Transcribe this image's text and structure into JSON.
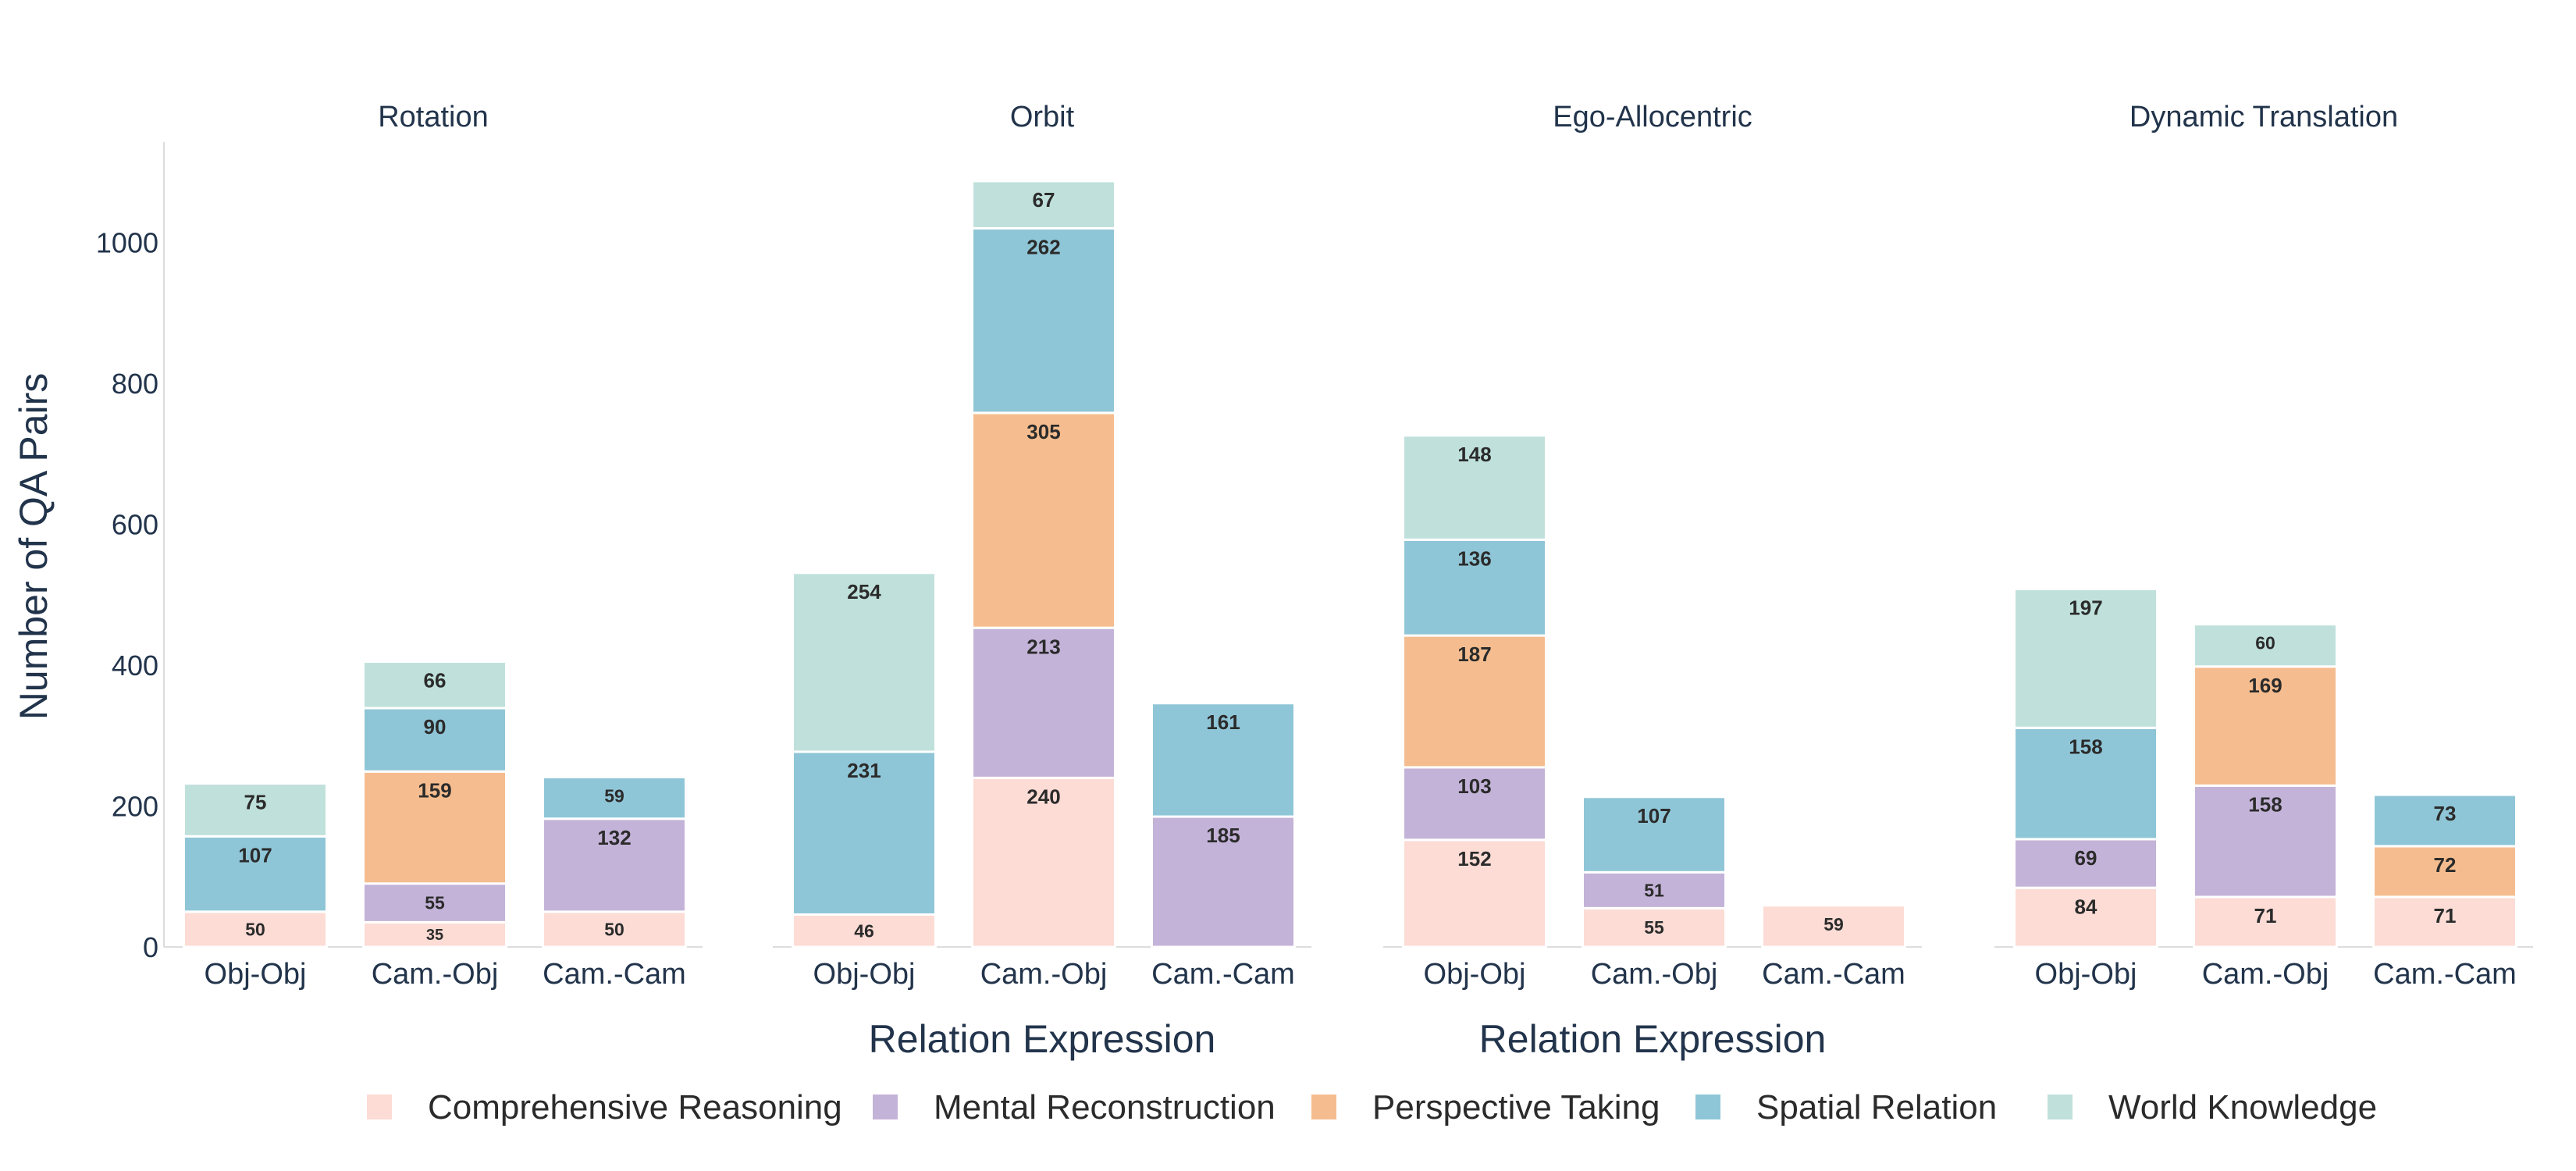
{
  "chart_data": {
    "type": "bar",
    "stacked": true,
    "ylabel": "Number of QA Pairs",
    "xlabel": "Relation Expression",
    "ylim": [
      0,
      1140
    ],
    "yticks": [
      0,
      200,
      400,
      600,
      800,
      1000
    ],
    "categories": [
      "Obj-Obj",
      "Cam.-Obj",
      "Cam.-Cam"
    ],
    "series": [
      {
        "name": "Comprehensive Reasoning",
        "color": "#fcdcd5"
      },
      {
        "name": "Mental Reconstruction",
        "color": "#c4b3d8"
      },
      {
        "name": "Perspective Taking",
        "color": "#f5bd8f"
      },
      {
        "name": "Spatial Relation",
        "color": "#8fc6d7"
      },
      {
        "name": "World Knowledge",
        "color": "#c0e1db"
      }
    ],
    "panels": [
      {
        "title": "Rotation",
        "show_xlabel": false,
        "values": [
          [
            50,
            0,
            0,
            107,
            75
          ],
          [
            35,
            55,
            159,
            90,
            66
          ],
          [
            50,
            132,
            0,
            59,
            0
          ]
        ]
      },
      {
        "title": "Orbit",
        "show_xlabel": true,
        "values": [
          [
            46,
            0,
            0,
            231,
            254
          ],
          [
            240,
            213,
            305,
            262,
            67
          ],
          [
            0,
            185,
            0,
            161,
            0
          ]
        ]
      },
      {
        "title": "Ego-Allocentric",
        "show_xlabel": true,
        "values": [
          [
            152,
            103,
            187,
            136,
            148
          ],
          [
            55,
            51,
            0,
            107,
            0
          ],
          [
            59,
            0,
            0,
            0,
            0
          ]
        ]
      },
      {
        "title": "Dynamic Translation",
        "show_xlabel": false,
        "values": [
          [
            84,
            69,
            0,
            158,
            197
          ],
          [
            71,
            158,
            169,
            0,
            60
          ],
          [
            71,
            0,
            72,
            73,
            0
          ]
        ]
      }
    ]
  }
}
